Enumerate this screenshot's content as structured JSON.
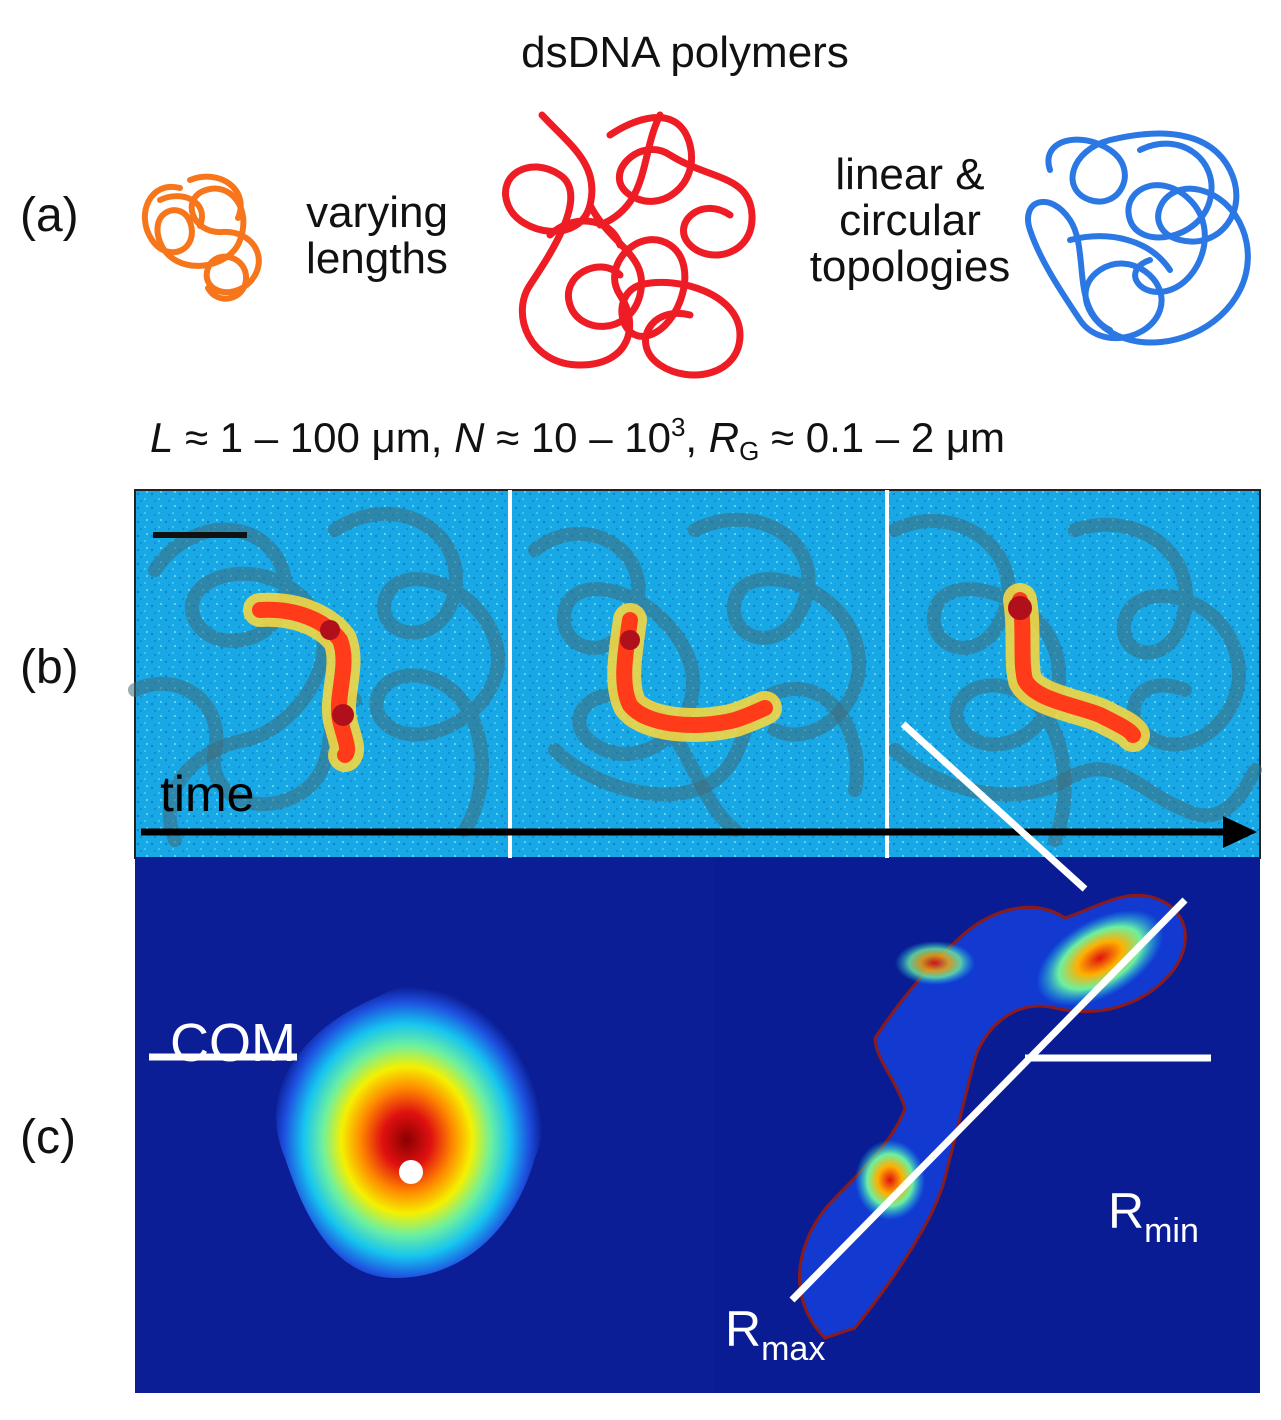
{
  "panel_a": {
    "label": "(a)",
    "title": "dsDNA polymers",
    "left_caption": [
      "varying",
      "lengths"
    ],
    "right_caption": [
      "linear &",
      "circular",
      "topologies"
    ],
    "equation": {
      "L_sym": "L",
      "L_range": "≈  1 – 100 μm,",
      "N_sym": "N",
      "N_range_a": "≈ 10 – 10",
      "N_exp": "3",
      "N_tail": ",",
      "R_sym": "R",
      "R_sub": "G",
      "R_range": "≈ 0.1 – 2 μm"
    },
    "colors": {
      "orange": "#f7761c",
      "red": "#ee1c24",
      "blue": "#2b78e4"
    }
  },
  "panel_b": {
    "label": "(b)",
    "time_label": "time",
    "frames": 3,
    "colors": {
      "background": "#18a8e6",
      "signal": "#ff3b1a"
    }
  },
  "panel_c": {
    "label": "(c)",
    "com_label": "COM",
    "rmin_base": "R",
    "rmin_sub": "min",
    "rmax_base": "R",
    "rmax_sub": "max",
    "colors": {
      "background": "#0b1e96",
      "contour": "#8b1a1a"
    }
  }
}
